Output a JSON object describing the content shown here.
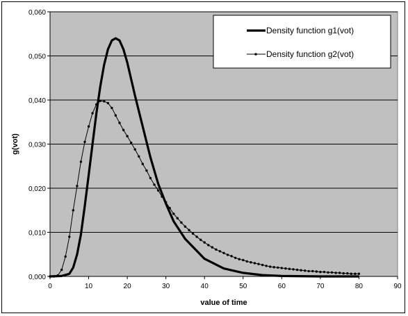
{
  "chart_data": {
    "type": "line",
    "title": "",
    "xlabel": "value of time",
    "ylabel": "g(vot)",
    "xlim": [
      0,
      90
    ],
    "ylim": [
      0,
      0.06
    ],
    "x_ticks": [
      "0",
      "10",
      "20",
      "30",
      "40",
      "50",
      "60",
      "70",
      "80",
      "90"
    ],
    "y_ticks": [
      "0,000",
      "0,010",
      "0,020",
      "0,030",
      "0,040",
      "0,050",
      "0,060"
    ],
    "grid": "horizontal",
    "plot_background": "#c0c0c0",
    "legend_position": "top-right",
    "series": [
      {
        "name": "Density function g1(vot)",
        "style": "thick-line",
        "color": "#000000",
        "points": [
          [
            0,
            0
          ],
          [
            3,
            0.0001
          ],
          [
            5,
            0.0006
          ],
          [
            6,
            0.002
          ],
          [
            7,
            0.005
          ],
          [
            8,
            0.0095
          ],
          [
            9,
            0.016
          ],
          [
            10,
            0.023
          ],
          [
            11,
            0.03
          ],
          [
            12,
            0.037
          ],
          [
            13,
            0.043
          ],
          [
            14,
            0.048
          ],
          [
            15,
            0.0515
          ],
          [
            16,
            0.0535
          ],
          [
            17,
            0.054
          ],
          [
            18,
            0.0535
          ],
          [
            19,
            0.0515
          ],
          [
            20,
            0.0485
          ],
          [
            22,
            0.041
          ],
          [
            24,
            0.034
          ],
          [
            26,
            0.027
          ],
          [
            28,
            0.021
          ],
          [
            30,
            0.0165
          ],
          [
            32,
            0.0125
          ],
          [
            35,
            0.0085
          ],
          [
            40,
            0.004
          ],
          [
            45,
            0.0018
          ],
          [
            50,
            0.0008
          ],
          [
            55,
            0.0003
          ],
          [
            60,
            0.0001
          ],
          [
            70,
            0.0
          ],
          [
            80,
            0.0
          ]
        ]
      },
      {
        "name": "Density function g2(vot)",
        "style": "thin-line-dot-markers",
        "color": "#000000",
        "points": [
          [
            0,
            0
          ],
          [
            1,
            0.0
          ],
          [
            2,
            0.0002
          ],
          [
            3,
            0.0015
          ],
          [
            4,
            0.0045
          ],
          [
            5,
            0.009
          ],
          [
            6,
            0.015
          ],
          [
            7,
            0.0205
          ],
          [
            8,
            0.026
          ],
          [
            9,
            0.0305
          ],
          [
            10,
            0.034
          ],
          [
            11,
            0.037
          ],
          [
            12,
            0.039
          ],
          [
            13,
            0.0398
          ],
          [
            14,
            0.0397
          ],
          [
            15,
            0.0393
          ],
          [
            16,
            0.0382
          ],
          [
            17,
            0.0365
          ],
          [
            18,
            0.0348
          ],
          [
            19,
            0.0332
          ],
          [
            20,
            0.0318
          ],
          [
            21,
            0.0303
          ],
          [
            22,
            0.0288
          ],
          [
            23,
            0.0272
          ],
          [
            24,
            0.0255
          ],
          [
            25,
            0.024
          ],
          [
            26,
            0.0223
          ],
          [
            27,
            0.0208
          ],
          [
            28,
            0.0195
          ],
          [
            29,
            0.0181
          ],
          [
            30,
            0.0168
          ],
          [
            31,
            0.0155
          ],
          [
            32,
            0.0142
          ],
          [
            33,
            0.0132
          ],
          [
            34,
            0.0122
          ],
          [
            35,
            0.0113
          ],
          [
            36,
            0.0105
          ],
          [
            37,
            0.0097
          ],
          [
            38,
            0.009
          ],
          [
            39,
            0.0083
          ],
          [
            40,
            0.0077
          ],
          [
            41,
            0.0071
          ],
          [
            42,
            0.0066
          ],
          [
            43,
            0.0061
          ],
          [
            44,
            0.0057
          ],
          [
            45,
            0.0053
          ],
          [
            46,
            0.0049
          ],
          [
            47,
            0.0046
          ],
          [
            48,
            0.0042
          ],
          [
            49,
            0.0039
          ],
          [
            50,
            0.0037
          ],
          [
            51,
            0.0034
          ],
          [
            52,
            0.0032
          ],
          [
            53,
            0.003
          ],
          [
            54,
            0.0028
          ],
          [
            55,
            0.0026
          ],
          [
            56,
            0.0024
          ],
          [
            57,
            0.0022
          ],
          [
            58,
            0.0021
          ],
          [
            59,
            0.002
          ],
          [
            60,
            0.0019
          ],
          [
            61,
            0.0018
          ],
          [
            62,
            0.0017
          ],
          [
            63,
            0.0016
          ],
          [
            64,
            0.0015
          ],
          [
            65,
            0.0014
          ],
          [
            66,
            0.0013
          ],
          [
            67,
            0.0012
          ],
          [
            68,
            0.0012
          ],
          [
            69,
            0.0011
          ],
          [
            70,
            0.001
          ],
          [
            71,
            0.001
          ],
          [
            72,
            0.0009
          ],
          [
            73,
            0.0009
          ],
          [
            74,
            0.0008
          ],
          [
            75,
            0.0008
          ],
          [
            76,
            0.0007
          ],
          [
            77,
            0.0007
          ],
          [
            78,
            0.0006
          ],
          [
            79,
            0.0006
          ],
          [
            80,
            0.0006
          ]
        ]
      }
    ]
  }
}
